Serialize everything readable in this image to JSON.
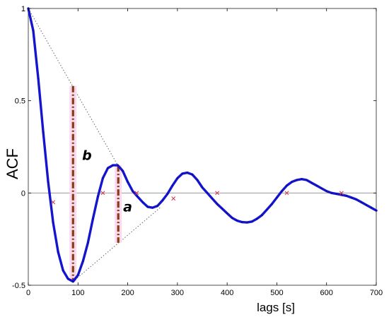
{
  "chart_data": {
    "type": "line",
    "title": "",
    "xlabel": "lags [s]",
    "ylabel": "ACF",
    "xlim": [
      0,
      700
    ],
    "ylim": [
      -0.5,
      1
    ],
    "grid": false,
    "legend": "none",
    "xticks": [
      "0",
      "100",
      "200",
      "300",
      "400",
      "500",
      "600",
      "700"
    ],
    "yticks": [
      "-0.5",
      "0",
      "0.5",
      "1"
    ],
    "reference_line_y": 0,
    "series": [
      {
        "color": "#1515d0",
        "x": [
          0,
          10,
          20,
          30,
          40,
          50,
          60,
          70,
          80,
          90,
          100,
          110,
          120,
          130,
          140,
          150,
          160,
          170,
          180,
          190,
          200,
          210,
          220,
          230,
          240,
          250,
          260,
          270,
          280,
          290,
          300,
          310,
          320,
          330,
          340,
          350,
          360,
          370,
          380,
          390,
          400,
          410,
          420,
          430,
          440,
          450,
          460,
          470,
          480,
          490,
          500,
          510,
          520,
          530,
          540,
          550,
          560,
          570,
          580,
          590,
          600,
          610,
          620,
          630,
          640,
          650,
          660,
          670,
          680,
          690,
          700
        ],
        "y": [
          1.0,
          0.88,
          0.62,
          0.33,
          0.06,
          -0.16,
          -0.32,
          -0.42,
          -0.465,
          -0.48,
          -0.445,
          -0.37,
          -0.27,
          -0.14,
          -0.02,
          0.08,
          0.135,
          0.15,
          0.15,
          0.12,
          0.06,
          0.01,
          -0.02,
          -0.05,
          -0.075,
          -0.08,
          -0.07,
          -0.04,
          -0.005,
          0.04,
          0.08,
          0.105,
          0.11,
          0.1,
          0.07,
          0.03,
          0.0,
          -0.03,
          -0.06,
          -0.085,
          -0.11,
          -0.135,
          -0.15,
          -0.158,
          -0.16,
          -0.155,
          -0.14,
          -0.12,
          -0.09,
          -0.06,
          -0.025,
          0.01,
          0.04,
          0.06,
          0.07,
          0.075,
          0.07,
          0.055,
          0.04,
          0.025,
          0.01,
          0.0,
          -0.005,
          -0.01,
          -0.015,
          -0.025,
          -0.035,
          -0.05,
          -0.065,
          -0.08,
          -0.095
        ]
      }
    ],
    "zero_crossings": [
      {
        "x": 50,
        "y": -0.05
      },
      {
        "x": 150,
        "y": 0.0
      },
      {
        "x": 218,
        "y": 0.0
      },
      {
        "x": 292,
        "y": -0.03
      },
      {
        "x": 380,
        "y": 0.0
      },
      {
        "x": 520,
        "y": 0.0
      },
      {
        "x": 630,
        "y": 0.0
      }
    ],
    "envelope_lines": [
      {
        "from": [
          0,
          1
        ],
        "to": [
          180,
          0.15
        ]
      },
      {
        "from": [
          90,
          -0.48
        ],
        "to": [
          265,
          -0.08
        ]
      }
    ],
    "annotations": [
      {
        "label": "b",
        "x": 90,
        "y_low": -0.48,
        "y_high": 0.58,
        "label_x": 118,
        "label_y": 0.18,
        "color": "#8b3a14"
      },
      {
        "label": "a",
        "x": 181,
        "y_low": -0.27,
        "y_high": 0.15,
        "label_x": 200,
        "label_y": -0.1,
        "color": "#8b3a14"
      }
    ]
  }
}
